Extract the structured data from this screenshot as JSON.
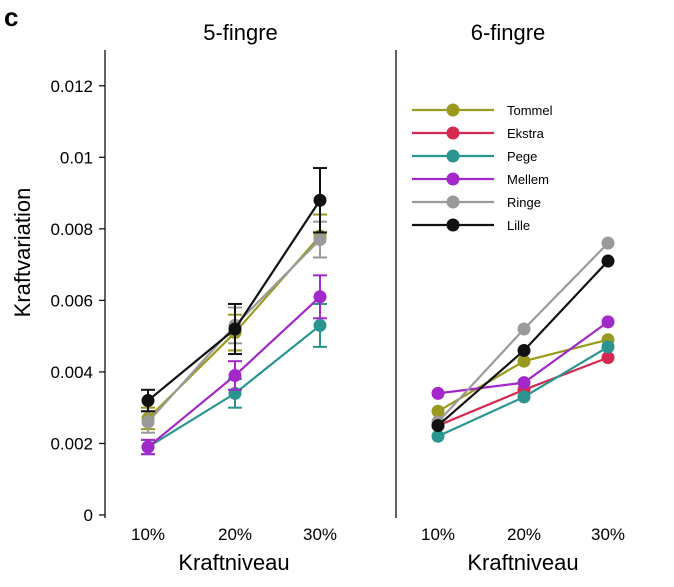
{
  "panel_label": "c",
  "colors": {
    "Tommel": "#9a9a1e",
    "Ekstra": "#d6294f",
    "Pege": "#2a9590",
    "Mellem": "#a228c9",
    "Ringe": "#9a9a9a",
    "Lille": "#111111"
  },
  "chart_data": [
    {
      "type": "line",
      "title": "5-fingre",
      "xlabel": "Kraftniveau",
      "ylabel": "Kraftvariation",
      "categories": [
        "10%",
        "20%",
        "30%"
      ],
      "ylim": [
        0,
        0.013
      ],
      "yticks": [
        0,
        0.002,
        0.004,
        0.006,
        0.008,
        0.01,
        0.012
      ],
      "ytick_labels": [
        "0",
        "0.002",
        "0.004",
        "0.006",
        "0.008",
        "0.01",
        "0.012"
      ],
      "legend": false,
      "series": [
        {
          "name": "Tommel",
          "values": [
            0.0027,
            0.0051,
            0.0078
          ],
          "errors": [
            0.0003,
            0.0005,
            0.0006
          ]
        },
        {
          "name": "Pege",
          "values": [
            0.0019,
            0.0034,
            0.0053
          ],
          "errors": [
            0.0002,
            0.0004,
            0.0006
          ]
        },
        {
          "name": "Mellem",
          "values": [
            0.0019,
            0.0039,
            0.0061
          ],
          "errors": [
            0.0002,
            0.0004,
            0.0006
          ]
        },
        {
          "name": "Ringe",
          "values": [
            0.0026,
            0.0053,
            0.0077
          ],
          "errors": [
            0.0003,
            0.0005,
            0.0005
          ]
        },
        {
          "name": "Lille",
          "values": [
            0.0032,
            0.0052,
            0.0088
          ],
          "errors": [
            0.0003,
            0.0007,
            0.0009
          ]
        }
      ]
    },
    {
      "type": "line",
      "title": "6-fingre",
      "xlabel": "Kraftniveau",
      "ylabel": "",
      "categories": [
        "10%",
        "20%",
        "30%"
      ],
      "ylim": [
        0,
        0.013
      ],
      "legend": true,
      "legend_position": "top-left",
      "series": [
        {
          "name": "Tommel",
          "values": [
            0.0029,
            0.0043,
            0.0049
          ]
        },
        {
          "name": "Ekstra",
          "values": [
            0.0025,
            0.0035,
            0.0044
          ]
        },
        {
          "name": "Pege",
          "values": [
            0.0022,
            0.0033,
            0.0047
          ]
        },
        {
          "name": "Mellem",
          "values": [
            0.0034,
            0.0037,
            0.0054
          ]
        },
        {
          "name": "Ringe",
          "values": [
            0.0026,
            0.0052,
            0.0076
          ]
        },
        {
          "name": "Lille",
          "values": [
            0.0025,
            0.0046,
            0.0071
          ]
        }
      ]
    }
  ]
}
